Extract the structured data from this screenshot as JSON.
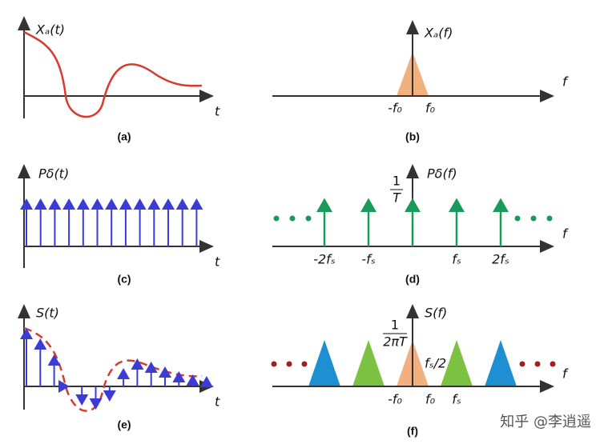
{
  "panels": [
    {
      "label": "(a)",
      "y_label": "Xₐ(t)",
      "x_label": "t"
    },
    {
      "label": "(b)",
      "y_label": "Xₐ(f)",
      "x_label": "f",
      "ticks": [
        "-f₀",
        "f₀"
      ]
    },
    {
      "label": "(c)",
      "y_label": "Pδ(t)",
      "x_label": "t"
    },
    {
      "label": "(d)",
      "y_label": "Pδ(f)",
      "x_label": "f",
      "height": {
        "numerator": "1",
        "denominator": "T"
      },
      "ticks": [
        "-2fₛ",
        "-fₛ",
        "fₛ",
        "2fₛ"
      ]
    },
    {
      "label": "(e)",
      "y_label": "S(t)",
      "x_label": "t"
    },
    {
      "label": "(f)",
      "y_label": "S(f)",
      "x_label": "f",
      "height": {
        "numerator": "1",
        "denominator": "2πT"
      },
      "half": "fₛ/2",
      "ticks": [
        "-f₀",
        "f₀",
        "fₛ"
      ]
    }
  ],
  "watermark": "知乎 @李逍遥"
}
